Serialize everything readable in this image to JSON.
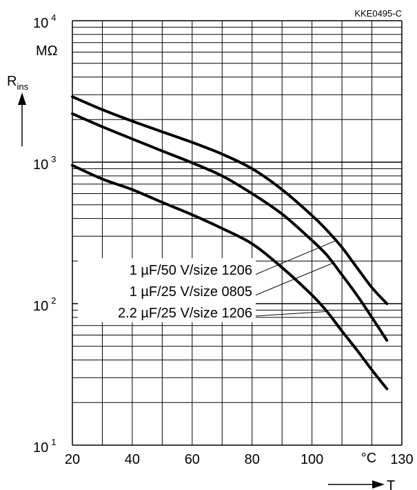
{
  "chart_data": {
    "type": "line",
    "figure_code": "KKE0495-C",
    "xlabel": "T",
    "x_unit": "°C",
    "ylabel_main": "R",
    "ylabel_sub": "ins",
    "y_unit": "MΩ",
    "xlim": [
      20,
      130
    ],
    "ylim": [
      10,
      10000
    ],
    "y_scale": "log",
    "grid": true,
    "x_ticks": [
      "20",
      "40",
      "60",
      "80",
      "100",
      "130"
    ],
    "y_ticks": [
      {
        "value": 10,
        "base": "10",
        "exp": "1"
      },
      {
        "value": 100,
        "base": "10",
        "exp": "2"
      },
      {
        "value": 1000,
        "base": "10",
        "exp": "3"
      },
      {
        "value": 10000,
        "base": "10",
        "exp": "4"
      }
    ],
    "series": [
      {
        "name": "1 µF/50 V/size 1206",
        "x": [
          20,
          30,
          40,
          50,
          60,
          70,
          80,
          90,
          100,
          105,
          110,
          115,
          120,
          125
        ],
        "y": [
          2900,
          2350,
          1950,
          1640,
          1380,
          1140,
          900,
          640,
          420,
          330,
          250,
          180,
          130,
          100
        ]
      },
      {
        "name": "1 µF/25 V/size 0805",
        "x": [
          20,
          30,
          40,
          50,
          60,
          70,
          80,
          90,
          100,
          105,
          110,
          115,
          120,
          125
        ],
        "y": [
          2200,
          1780,
          1460,
          1200,
          990,
          800,
          600,
          430,
          280,
          220,
          160,
          115,
          80,
          55
        ]
      },
      {
        "name": "2.2 µF/25 V/size 1206",
        "x": [
          20,
          30,
          40,
          50,
          60,
          70,
          80,
          90,
          100,
          105,
          110,
          115,
          120,
          125
        ],
        "y": [
          950,
          760,
          640,
          520,
          425,
          340,
          265,
          180,
          115,
          88,
          64,
          47,
          34,
          25
        ]
      }
    ]
  }
}
